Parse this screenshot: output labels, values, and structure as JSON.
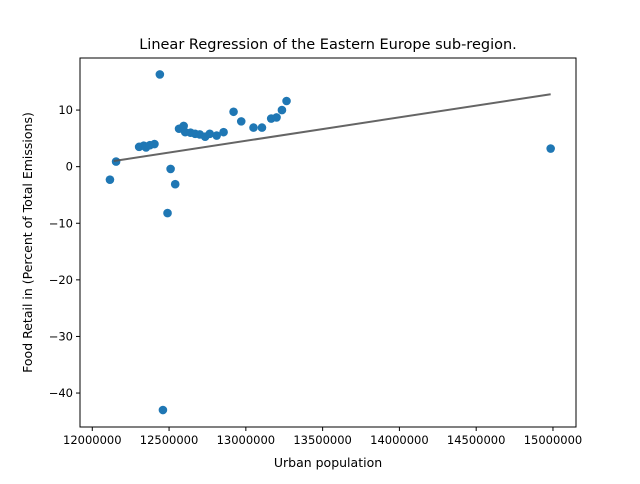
{
  "colors": {
    "point": "#1f77b4",
    "fit_line": "#555555",
    "axes": "#000000",
    "background": "#ffffff"
  },
  "chart_data": {
    "type": "scatter",
    "title": "Linear Regression of the Eastern Europe sub-region.",
    "xlabel": "Urban population",
    "ylabel": "Food Retail in (Percent of Total Emissions)",
    "xlim": [
      11920000,
      15150000
    ],
    "ylim": [
      -46,
      19.2
    ],
    "x_ticks": [
      12000000,
      12500000,
      13000000,
      13500000,
      14000000,
      14500000,
      15000000
    ],
    "x_tick_labels": [
      "12000000",
      "12500000",
      "13000000",
      "13500000",
      "14000000",
      "14500000",
      "15000000"
    ],
    "y_ticks": [
      -40,
      -30,
      -20,
      -10,
      0,
      10
    ],
    "y_tick_labels": [
      "−40",
      "−30",
      "−20",
      "−10",
      "0",
      "10"
    ],
    "grid": false,
    "legend": "none",
    "points": [
      {
        "x": 12115000,
        "y": -2.3
      },
      {
        "x": 12155000,
        "y": 0.9
      },
      {
        "x": 12305000,
        "y": 3.5
      },
      {
        "x": 12335000,
        "y": 3.7
      },
      {
        "x": 12350000,
        "y": 3.4
      },
      {
        "x": 12375000,
        "y": 3.8
      },
      {
        "x": 12405000,
        "y": 4.0
      },
      {
        "x": 12440000,
        "y": 16.3
      },
      {
        "x": 12460000,
        "y": -43.0
      },
      {
        "x": 12490000,
        "y": -8.2
      },
      {
        "x": 12510000,
        "y": -0.4
      },
      {
        "x": 12540000,
        "y": -3.1
      },
      {
        "x": 12565000,
        "y": 6.7
      },
      {
        "x": 12595000,
        "y": 7.2
      },
      {
        "x": 12605000,
        "y": 6.1
      },
      {
        "x": 12640000,
        "y": 6.0
      },
      {
        "x": 12670000,
        "y": 5.8
      },
      {
        "x": 12700000,
        "y": 5.7
      },
      {
        "x": 12735000,
        "y": 5.3
      },
      {
        "x": 12765000,
        "y": 5.8
      },
      {
        "x": 12810000,
        "y": 5.5
      },
      {
        "x": 12855000,
        "y": 6.1
      },
      {
        "x": 12920000,
        "y": 9.7
      },
      {
        "x": 12970000,
        "y": 8.0
      },
      {
        "x": 13050000,
        "y": 6.9
      },
      {
        "x": 13105000,
        "y": 6.9
      },
      {
        "x": 13165000,
        "y": 8.5
      },
      {
        "x": 13200000,
        "y": 8.7
      },
      {
        "x": 13235000,
        "y": 10.0
      },
      {
        "x": 13265000,
        "y": 11.6
      },
      {
        "x": 14985000,
        "y": 3.2
      }
    ],
    "fit_line": {
      "x": [
        12140000,
        14985000
      ],
      "y": [
        1.0,
        12.8
      ]
    }
  }
}
